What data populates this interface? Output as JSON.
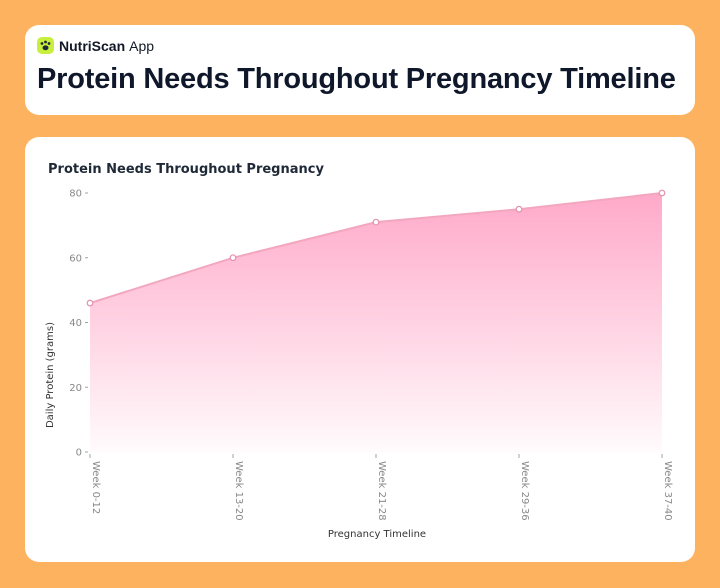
{
  "header": {
    "brand_name": "NutriScan",
    "brand_suffix": "App",
    "title": "Protein Needs Throughout Pregnancy Timeline"
  },
  "colors": {
    "page_background": "#FDB25F",
    "logo_background": "#C7EF3B",
    "area_top": "#FFA9C8",
    "line": "#F2A7BF"
  },
  "chart_data": {
    "type": "area",
    "title": "Protein Needs Throughout Pregnancy",
    "xlabel": "Pregnancy Timeline",
    "ylabel": "Daily Protein (grams)",
    "categories": [
      "Week 0-12",
      "Week 13-20",
      "Week 21-28",
      "Week 29-36",
      "Week 37-40"
    ],
    "values": [
      46,
      60,
      71,
      75,
      80
    ],
    "ylim": [
      0,
      80
    ],
    "yticks": [
      0,
      20,
      40,
      60,
      80
    ],
    "grid": false,
    "markers": true
  }
}
